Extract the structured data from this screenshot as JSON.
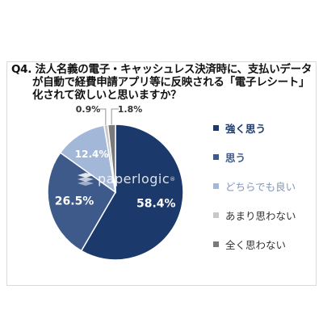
{
  "question": {
    "lines": [
      "Q4. 法人名義の電子・キャッシュレス決済時に、支払いデータ",
      "が自動で経費申請アプリ等に反映される「電子レシート」",
      "化されて欲しいと思いますか？"
    ]
  },
  "chart_data": {
    "type": "pie",
    "categories": [
      "強く思う",
      "思う",
      "どちらでも良い",
      "あまり思わない",
      "全く思わない"
    ],
    "values": [
      58.4,
      26.5,
      12.4,
      0.9,
      1.8
    ],
    "labels": [
      "58.4%",
      "26.5%",
      "12.4%",
      "0.9%",
      "1.8%"
    ],
    "colors": [
      "#1b3a6b",
      "#3d5a8a",
      "#a3b8d8",
      "#c8c8c8",
      "#7a7a7a"
    ],
    "legend_position": "right",
    "start_angle": "12 o'clock, clockwise"
  },
  "legend": {
    "items": [
      {
        "label": "強く思う",
        "color": "#1b3a6b",
        "text_color": "#1b3a6b",
        "bold": true
      },
      {
        "label": "思う",
        "color": "#3d5a8a",
        "text_color": "#3d5a8a",
        "bold": true
      },
      {
        "label": "どちらでも良い",
        "color": "#a3b8d8",
        "text_color": "#7f97bd",
        "bold": false
      },
      {
        "label": "あまり思わない",
        "color": "#c8c8c8",
        "text_color": "#333333",
        "bold": false
      },
      {
        "label": "全く思わない",
        "color": "#7a7a7a",
        "text_color": "#333333",
        "bold": false
      }
    ]
  },
  "watermark": {
    "text": "paperlogic",
    "mark": "®"
  }
}
